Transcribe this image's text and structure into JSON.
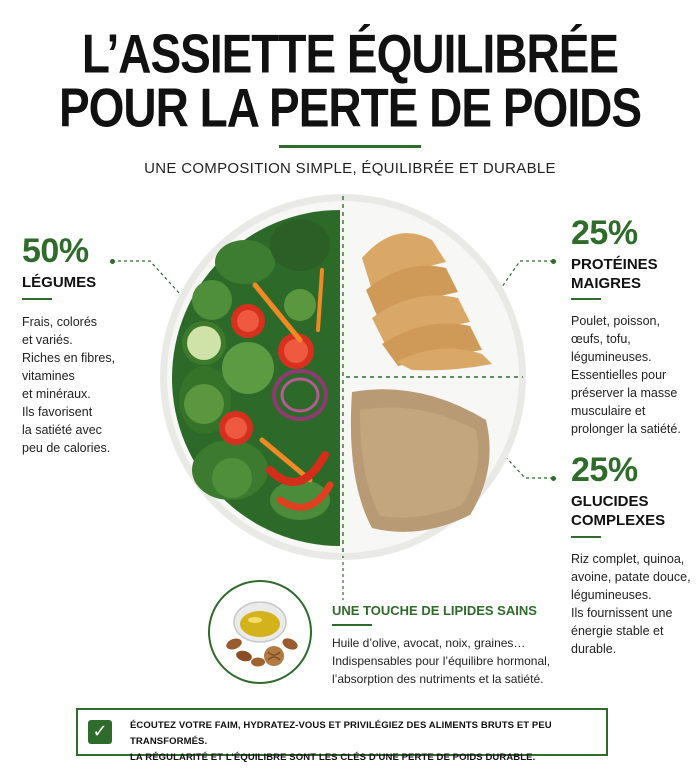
{
  "header": {
    "title_line1": "L’ASSIETTE ÉQUILIBRÉE",
    "title_line2": "POUR LA PERTE DE POIDS",
    "subtitle": "UNE COMPOSITION SIMPLE, ÉQUILIBRÉE ET DURABLE"
  },
  "vegetables": {
    "percent": "50%",
    "heading": "LÉGUMES",
    "lines": [
      "Frais, colorés",
      "et variés.",
      "Riches en fibres,",
      "vitamines",
      "et minéraux.",
      "Ils favorisent",
      "la satiété avec",
      "peu de calories."
    ]
  },
  "proteins": {
    "percent": "25%",
    "heading_line1": "PROTÉINES",
    "heading_line2": "MAIGRES",
    "lines": [
      "Poulet, poisson,",
      "œufs, tofu, légumineuses.",
      "Essentielles pour",
      "préserver la masse",
      "musculaire et",
      "prolonger la satiété."
    ]
  },
  "carbs": {
    "percent": "25%",
    "heading_line1": "GLUCIDES",
    "heading_line2": "COMPLEXES",
    "lines": [
      "Riz complet, quinoa,",
      "avoine, patate douce,",
      "légumineuses.",
      "Ils fournissent une",
      "énergie stable et",
      "durable."
    ]
  },
  "lipids": {
    "heading": "UNE TOUCHE DE LIPIDES SAINS",
    "lines": [
      "Huile d’olive, avocat, noix, graines…",
      "Indispensables pour l’équilibre hormonal,",
      "l’absorption des nutriments et la satiété."
    ]
  },
  "footer": {
    "line1": "ÉCOUTEZ VOTRE FAIM, HYDRATEZ-VOUS ET PRIVILÉGIEZ DES ALIMENTS BRUTS ET PEU TRANSFORMÉS.",
    "line2": "LA RÉGULARITÉ ET L’ÉQUILIBRE SONT LES CLÉS D’UNE PERTE DE POIDS DURABLE."
  },
  "colors": {
    "accent_green": "#2f6b2a",
    "plate": "#f2f2f0",
    "chicken": "#d9a866",
    "grain": "#b89a74"
  },
  "icons": [
    "check-icon",
    "olive-oil-bowl-icon",
    "almond-icon",
    "walnut-icon"
  ]
}
